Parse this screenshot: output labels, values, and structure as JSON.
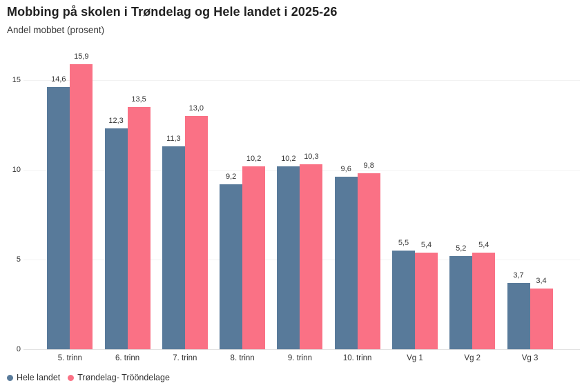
{
  "title": "Mobbing på skolen i Trøndelag og Hele landet i 2025-26",
  "subtitle": "Andel mobbet (prosent)",
  "chart_data": {
    "type": "bar",
    "title": "Mobbing på skolen i Trøndelag og Hele landet i 2025-26",
    "subtitle": "Andel mobbet (prosent)",
    "categories": [
      "5. trinn",
      "6. trinn",
      "7. trinn",
      "8. trinn",
      "9. trinn",
      "10. trinn",
      "Vg 1",
      "Vg 2",
      "Vg 3"
    ],
    "series": [
      {
        "name": "Hele landet",
        "color": "#587a9a",
        "values": [
          14.6,
          12.3,
          11.3,
          9.2,
          10.2,
          9.6,
          5.5,
          5.2,
          3.7
        ]
      },
      {
        "name": "Trøndelag- Trööndelage",
        "color": "#fa7185",
        "values": [
          15.9,
          13.5,
          13.0,
          10.2,
          10.3,
          9.8,
          5.4,
          5.4,
          3.4
        ]
      }
    ],
    "xlabel": "",
    "ylabel": "",
    "ylim": [
      0,
      16.5
    ],
    "yticks": [
      0,
      5,
      10,
      15
    ],
    "grid": true,
    "legend_position": "bottom-left",
    "value_labels": true,
    "decimal_separator": ",",
    "gridline_color": "#f2f2f2",
    "axis_line_color": "#e1e1e1",
    "label_color": "#333333"
  }
}
